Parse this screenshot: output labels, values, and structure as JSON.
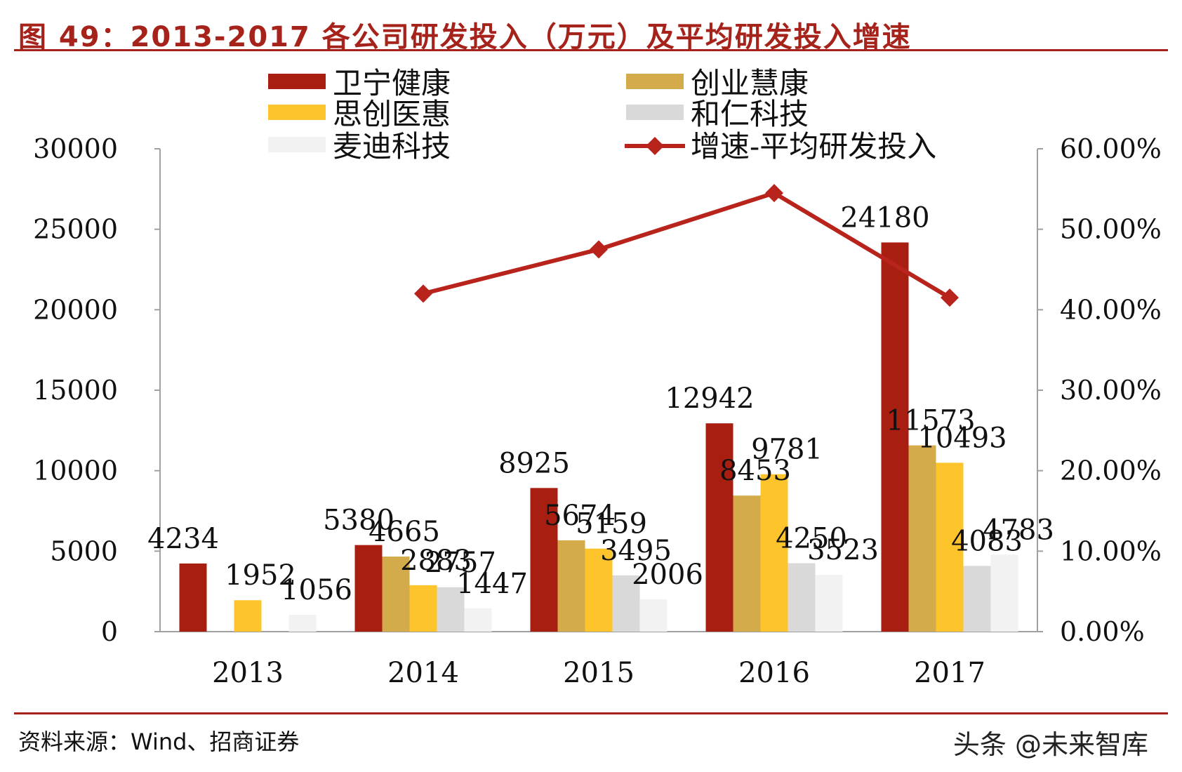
{
  "header": {
    "title": "图 49：2013-2017 各公司研发投入（万元）及平均研发投入增速"
  },
  "footer": {
    "source": "资料来源：Wind、招商证券",
    "watermark": "头条 @未来智库"
  },
  "colors": {
    "accent": "#a6231b",
    "weining": "#a81f12",
    "chuangye": "#d4ab4a",
    "sichuang": "#fdc52b",
    "heren": "#d9d9d9",
    "maidi": "#f2f2f2",
    "growth_line": "#b8231b"
  },
  "chart_data": {
    "type": "bar",
    "categories": [
      "2013",
      "2014",
      "2015",
      "2016",
      "2017"
    ],
    "series": [
      {
        "name": "卫宁健康",
        "color_key": "weining",
        "values": [
          4234,
          5380,
          8925,
          12942,
          24180
        ],
        "labels": [
          "4234",
          "5380",
          "8925",
          "12942",
          "24180"
        ]
      },
      {
        "name": "创业慧康",
        "color_key": "chuangye",
        "values": [
          null,
          4665,
          5674,
          8453,
          11573
        ],
        "labels": [
          "",
          "4665",
          "5674",
          "8453",
          "11573"
        ]
      },
      {
        "name": "思创医惠",
        "color_key": "sichuang",
        "values": [
          1952,
          2883,
          5159,
          9781,
          10493
        ],
        "labels": [
          "1952",
          "2883",
          "5159",
          "9781",
          "10493"
        ]
      },
      {
        "name": "和仁科技",
        "color_key": "heren",
        "values": [
          null,
          2757,
          3495,
          4250,
          4083
        ],
        "labels": [
          "",
          "2757",
          "3495",
          "4250",
          "4083"
        ]
      },
      {
        "name": "麦迪科技",
        "color_key": "maidi",
        "values": [
          1056,
          1447,
          2006,
          3523,
          4783
        ],
        "labels": [
          "1056",
          "1447",
          "2006",
          "3523",
          "4783"
        ]
      }
    ],
    "line_series": {
      "name": "增速-平均研发投入",
      "color_key": "growth_line",
      "axis": "right",
      "values": [
        null,
        0.42,
        0.475,
        0.545,
        0.415
      ]
    },
    "y_left": {
      "min": 0,
      "max": 30000,
      "ticks": [
        "0",
        "5000",
        "10000",
        "15000",
        "20000",
        "25000",
        "30000"
      ]
    },
    "y_right": {
      "min": 0,
      "max": 0.6,
      "ticks": [
        "0.00%",
        "10.00%",
        "20.00%",
        "30.00%",
        "40.00%",
        "50.00%",
        "60.00%"
      ]
    },
    "legend_position": "top",
    "grid": false
  }
}
